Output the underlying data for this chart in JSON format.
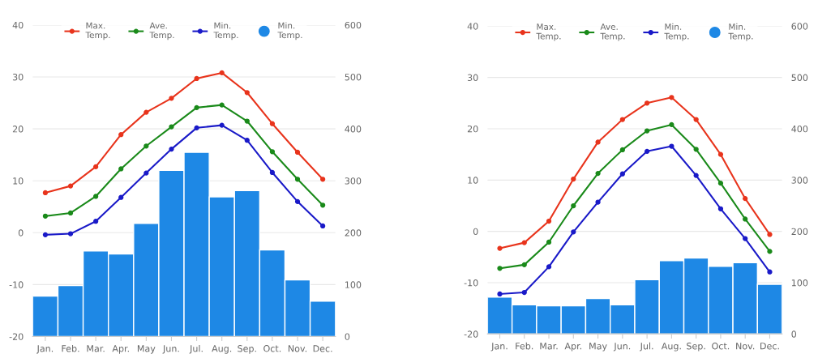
{
  "chart_data": [
    {
      "type": "line",
      "categories": [
        "Jan.",
        "Feb.",
        "Mar.",
        "Apr.",
        "May",
        "Jun.",
        "Jul.",
        "Aug.",
        "Sep.",
        "Oct.",
        "Nov.",
        "Dec."
      ],
      "series": [
        {
          "name": "Max. Temp.",
          "color": "#e8341c",
          "values": [
            7.7,
            9.0,
            12.7,
            18.9,
            23.2,
            25.9,
            29.7,
            30.8,
            27.0,
            21.0,
            15.5,
            10.3
          ]
        },
        {
          "name": "Ave. Temp.",
          "color": "#1a8a1a",
          "values": [
            3.2,
            3.8,
            7.0,
            12.3,
            16.7,
            20.4,
            24.1,
            24.6,
            21.5,
            15.6,
            10.3,
            5.3
          ]
        },
        {
          "name": "Min. Temp.",
          "color": "#1a1ac8",
          "values": [
            -0.4,
            -0.2,
            2.2,
            6.8,
            11.5,
            16.1,
            20.2,
            20.7,
            17.8,
            11.6,
            6.0,
            1.3
          ]
        },
        {
          "name": "Min. Temp.",
          "type": "bar",
          "axis": "y2",
          "color": "#1e88e5",
          "values": [
            78,
            98,
            165,
            159,
            218,
            320,
            355,
            269,
            281,
            167,
            109,
            68
          ]
        }
      ],
      "ylim": [
        -20,
        40
      ],
      "yticks": [
        -20,
        -10,
        0,
        10,
        20,
        30,
        40
      ],
      "y2lim": [
        0,
        600
      ],
      "y2ticks": [
        0,
        100,
        200,
        300,
        400,
        500,
        600
      ],
      "grid": "y",
      "legend": "top",
      "marker": "circle",
      "line_style": "solid"
    },
    {
      "type": "line",
      "categories": [
        "Jan.",
        "Feb.",
        "Mar.",
        "Apr.",
        "May",
        "Jun.",
        "Jul.",
        "Aug.",
        "Sep.",
        "Oct.",
        "Nov.",
        "Dec."
      ],
      "series": [
        {
          "name": "Max. Temp.",
          "color": "#e8341c",
          "values": [
            -3.3,
            -2.2,
            2.0,
            10.2,
            17.4,
            21.8,
            25.0,
            26.1,
            21.8,
            15.0,
            6.4,
            -0.6
          ]
        },
        {
          "name": "Ave. Temp.",
          "color": "#1a8a1a",
          "values": [
            -7.2,
            -6.5,
            -2.1,
            5.0,
            11.3,
            15.9,
            19.6,
            20.8,
            16.0,
            9.4,
            2.4,
            -3.9
          ]
        },
        {
          "name": "Min. Temp.",
          "color": "#1a1ac8",
          "values": [
            -12.2,
            -11.9,
            -6.9,
            -0.1,
            5.7,
            11.2,
            15.6,
            16.6,
            10.9,
            4.4,
            -1.4,
            -7.9
          ]
        },
        {
          "name": "Min. Temp.",
          "type": "bar",
          "axis": "y2",
          "color": "#1e88e5",
          "values": [
            72,
            57,
            55,
            55,
            69,
            57,
            106,
            143,
            148,
            132,
            139,
            97
          ]
        }
      ],
      "ylim": [
        -20,
        40
      ],
      "yticks": [
        -20,
        -10,
        0,
        10,
        20,
        30,
        40
      ],
      "y2lim": [
        0,
        600
      ],
      "y2ticks": [
        0,
        100,
        200,
        300,
        400,
        500,
        600
      ],
      "grid": "y",
      "legend": "top",
      "marker": "circle",
      "line_style": "solid"
    }
  ]
}
